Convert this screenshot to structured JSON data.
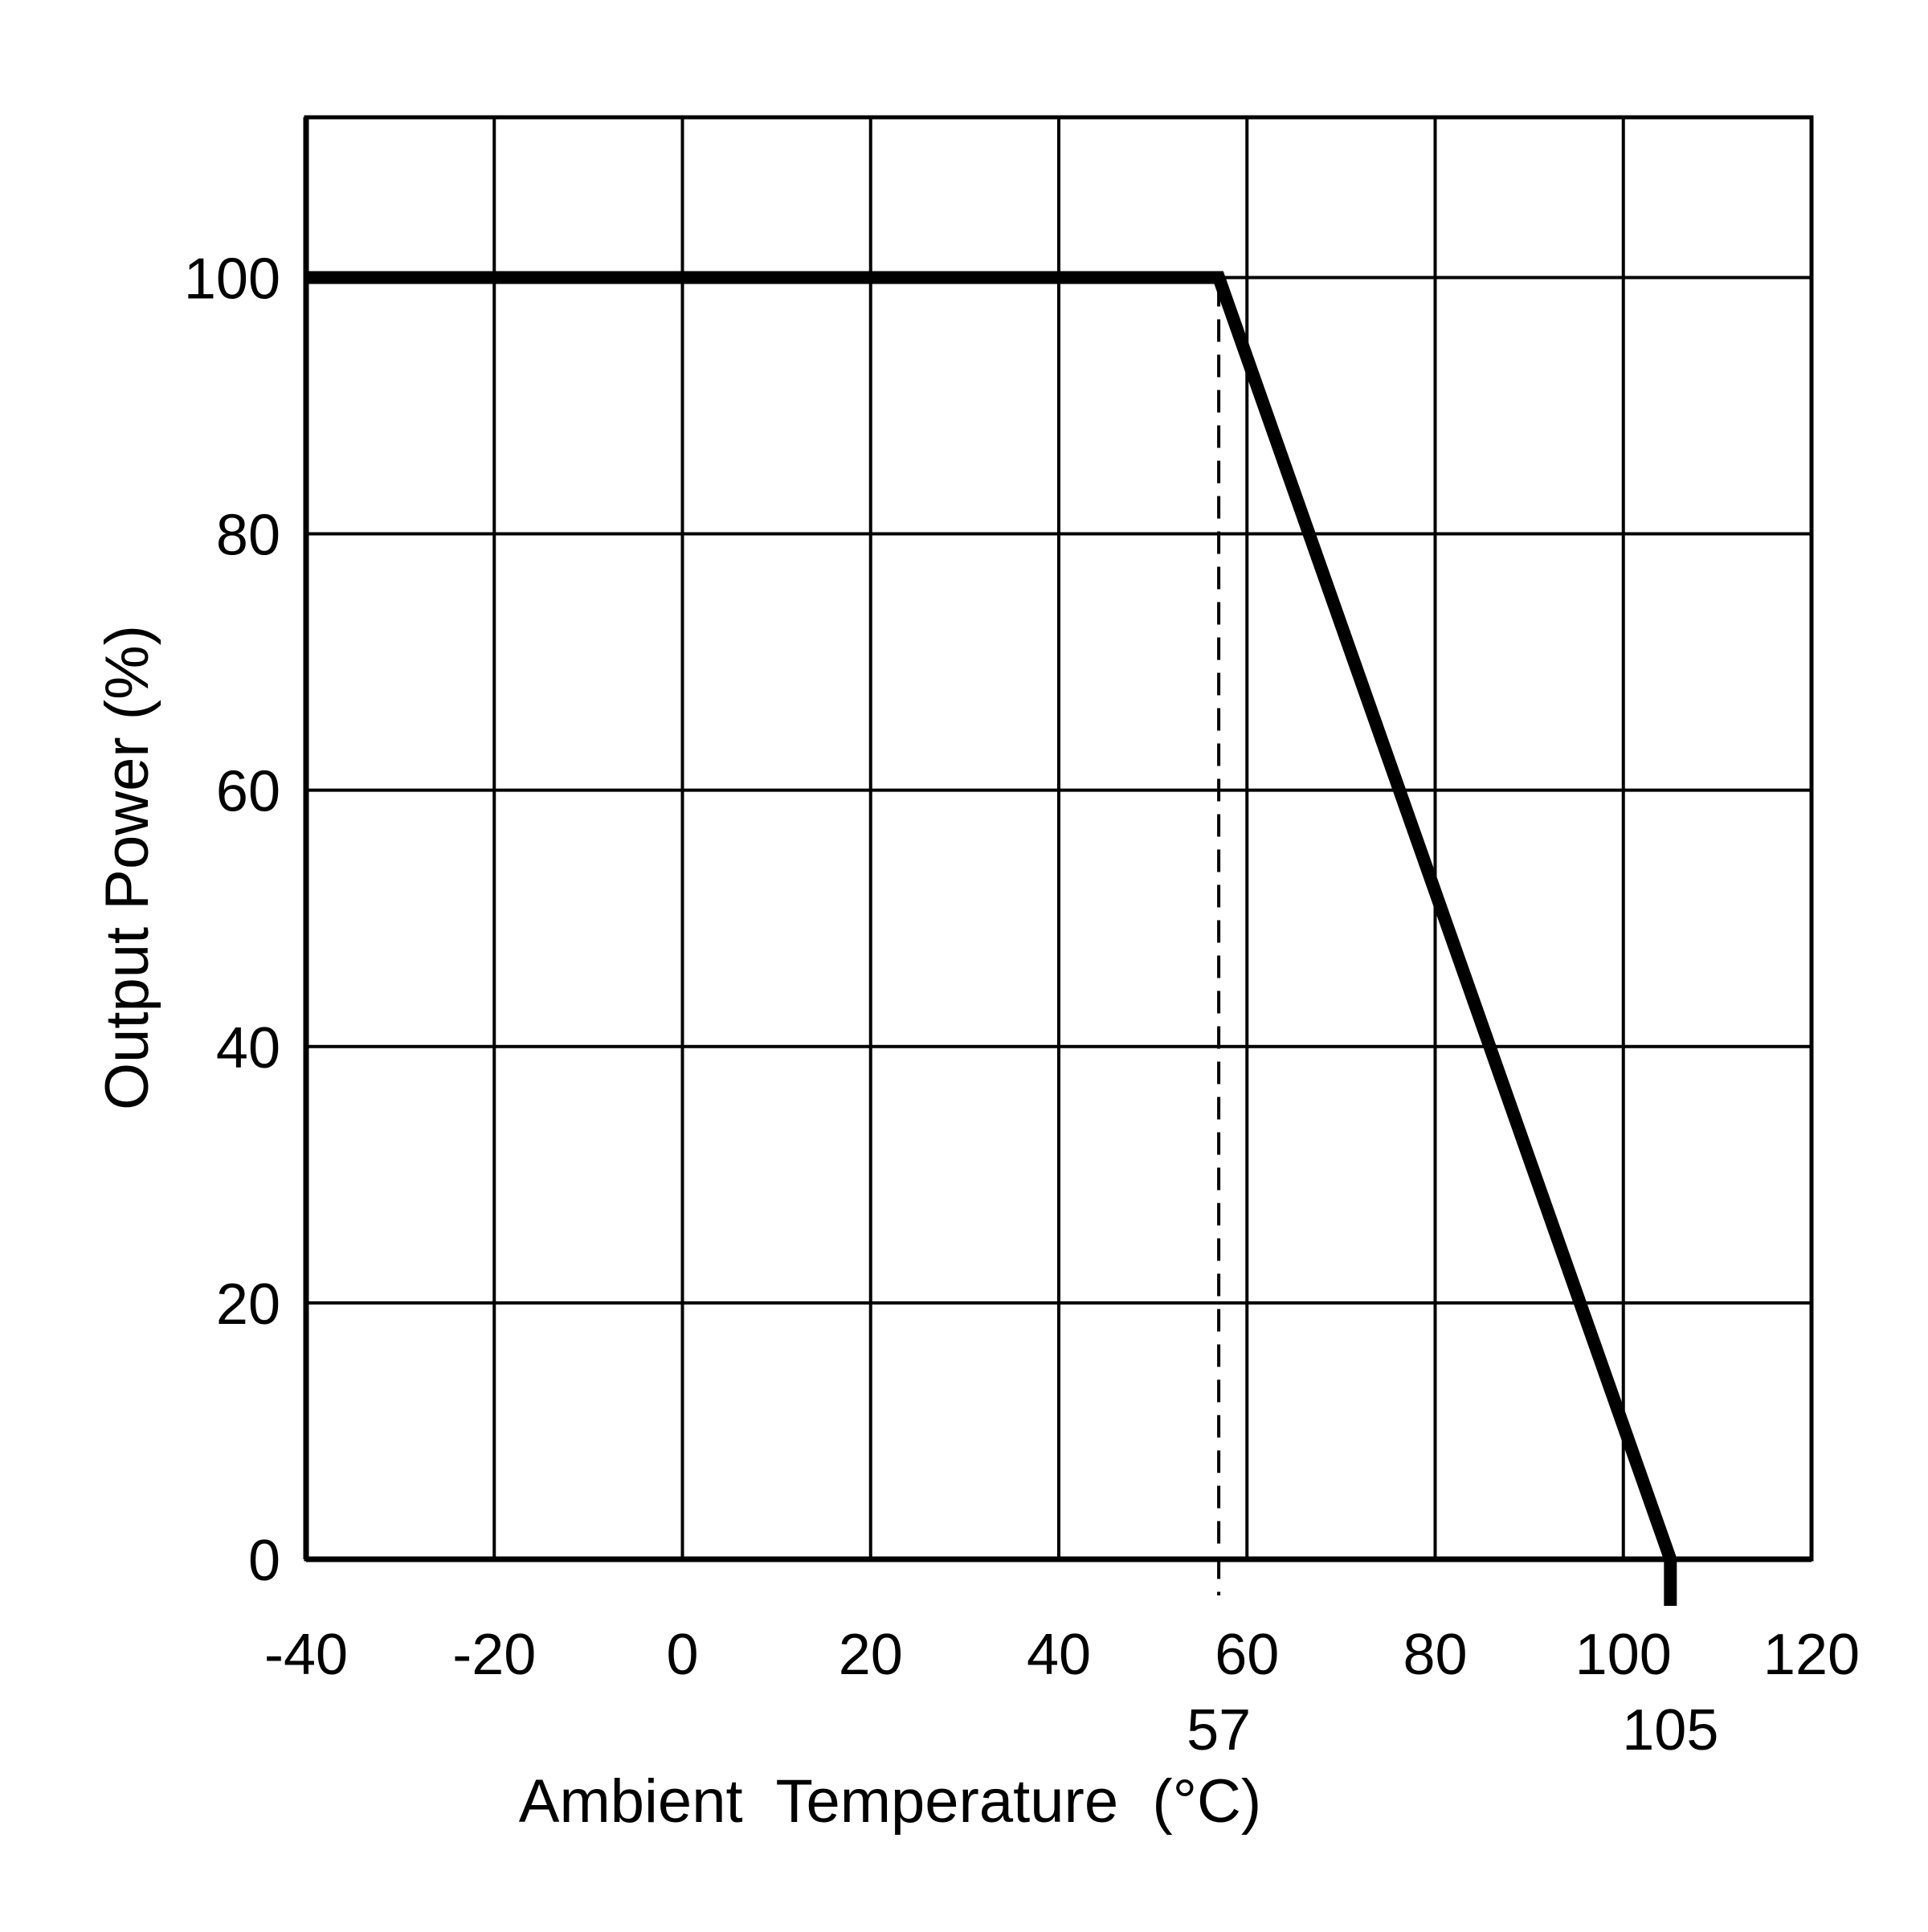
{
  "chart_data": {
    "type": "line",
    "xlabel": "Ambient  Temperature  (°C)",
    "ylabel": "Output Power (%)",
    "xlim": [
      -40,
      120
    ],
    "ylim": [
      0,
      112.5
    ],
    "x_ticks": [
      -40,
      -20,
      0,
      20,
      40,
      60,
      80,
      100,
      120
    ],
    "y_ticks": [
      0,
      20,
      40,
      60,
      80,
      100
    ],
    "extra_x_ticks": [
      57,
      105
    ],
    "grid": true,
    "series": [
      {
        "x": [
          -40,
          57,
          105
        ],
        "y": [
          100,
          100,
          0
        ]
      }
    ],
    "reference_lines": [
      {
        "orientation": "vertical",
        "x": 57,
        "style": "dashed"
      }
    ]
  }
}
